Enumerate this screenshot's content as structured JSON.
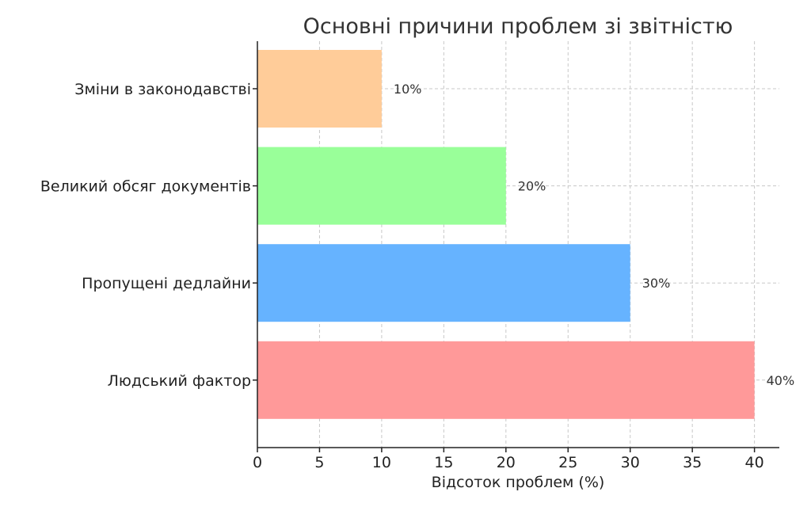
{
  "chart_data": {
    "type": "bar",
    "orientation": "horizontal",
    "title": "Основні причини проблем зі звітністю",
    "xlabel": "Відсоток проблем (%)",
    "ylabel": "",
    "categories": [
      "Людський фактор",
      "Пропущені дедлайни",
      "Великий обсяг документів",
      "Зміни в законодавстві"
    ],
    "values": [
      40,
      30,
      20,
      10
    ],
    "data_labels": [
      "40%",
      "30%",
      "20%",
      "10%"
    ],
    "colors": [
      "#ff9999",
      "#66b3ff",
      "#99ff99",
      "#ffcc99"
    ],
    "xlim": [
      0,
      42
    ],
    "xticks": [
      0,
      5,
      10,
      15,
      20,
      25,
      30,
      35,
      40
    ],
    "grid": true
  }
}
